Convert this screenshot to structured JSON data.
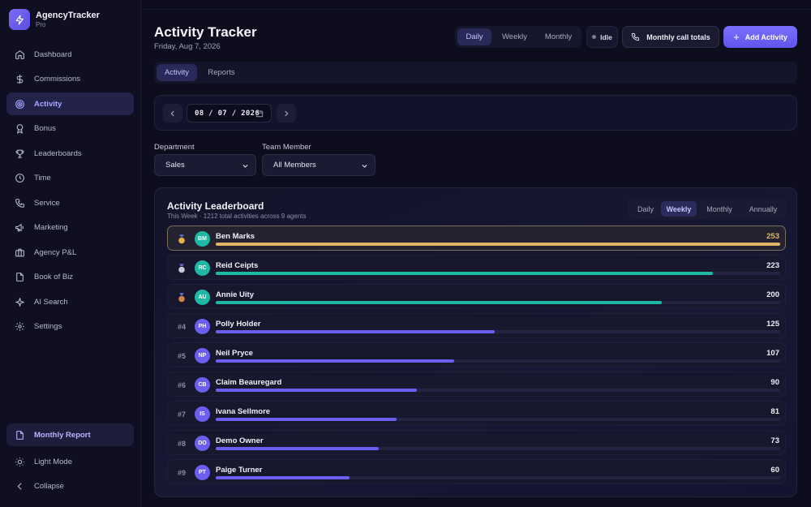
{
  "brand": {
    "name": "AgencyTracker",
    "tier": "Pro"
  },
  "sidebar": {
    "items": [
      {
        "label": "Dashboard",
        "icon": "home-icon",
        "active": false
      },
      {
        "label": "Commissions",
        "icon": "dollar-icon",
        "active": false
      },
      {
        "label": "Activity",
        "icon": "target-icon",
        "active": true
      },
      {
        "label": "Bonus",
        "icon": "award-icon",
        "active": false
      },
      {
        "label": "Leaderboards",
        "icon": "trophy-icon",
        "active": false
      },
      {
        "label": "Time",
        "icon": "clock-icon",
        "active": false
      },
      {
        "label": "Service",
        "icon": "phone-icon",
        "active": false
      },
      {
        "label": "Marketing",
        "icon": "megaphone-icon",
        "active": false
      },
      {
        "label": "Agency P&L",
        "icon": "briefcase-icon",
        "active": false
      },
      {
        "label": "Book of Biz",
        "icon": "file-icon",
        "active": false
      },
      {
        "label": "AI Search",
        "icon": "sparkle-icon",
        "active": false
      },
      {
        "label": "Settings",
        "icon": "gear-icon",
        "active": false
      }
    ],
    "monthly_report": "Monthly Report",
    "light_mode": "Light Mode",
    "collapse": "Collapse"
  },
  "header": {
    "title": "Activity Tracker",
    "date": "Friday, Aug 7, 2026",
    "periods": [
      "Daily",
      "Weekly",
      "Monthly"
    ],
    "active_period": "Daily",
    "status": "Idle",
    "call_totals_label": "Monthly call totals",
    "add_label": "Add Activity"
  },
  "tabs": {
    "activity": "Activity",
    "reports": "Reports"
  },
  "date_picker": {
    "value": "08 / 07 / 2026"
  },
  "filters": {
    "department_label": "Department",
    "department_value": "Sales",
    "member_label": "Team Member",
    "member_value": "All Members"
  },
  "leaderboard": {
    "title": "Activity Leaderboard",
    "subtitle": "This Week · 1212 total activities across 9 agents",
    "ranges": [
      "Daily",
      "Weekly",
      "Monthly",
      "Annually"
    ],
    "active_range": "Weekly",
    "max": 253,
    "agents": [
      {
        "rank": "1",
        "initials": "BM",
        "name": "Ben Marks",
        "count": 253,
        "medal": "gold"
      },
      {
        "rank": "2",
        "initials": "RC",
        "name": "Reid Ceipts",
        "count": 223,
        "medal": "silver"
      },
      {
        "rank": "3",
        "initials": "AU",
        "name": "Annie Uity",
        "count": 200,
        "medal": "bronze"
      },
      {
        "rank": "#4",
        "initials": "PH",
        "name": "Polly Holder",
        "count": 125
      },
      {
        "rank": "#5",
        "initials": "NP",
        "name": "Neil Pryce",
        "count": 107
      },
      {
        "rank": "#6",
        "initials": "CB",
        "name": "Claim Beauregard",
        "count": 90
      },
      {
        "rank": "#7",
        "initials": "IS",
        "name": "Ivana Sellmore",
        "count": 81
      },
      {
        "rank": "#8",
        "initials": "DO",
        "name": "Demo Owner",
        "count": 73
      },
      {
        "rank": "#9",
        "initials": "PT",
        "name": "Paige Turner",
        "count": 60
      }
    ]
  },
  "colors": {
    "accent": "#6b61f5",
    "gold": "#e3b466",
    "teal": "#1fb8a4",
    "purple": "#6a5ff0"
  }
}
